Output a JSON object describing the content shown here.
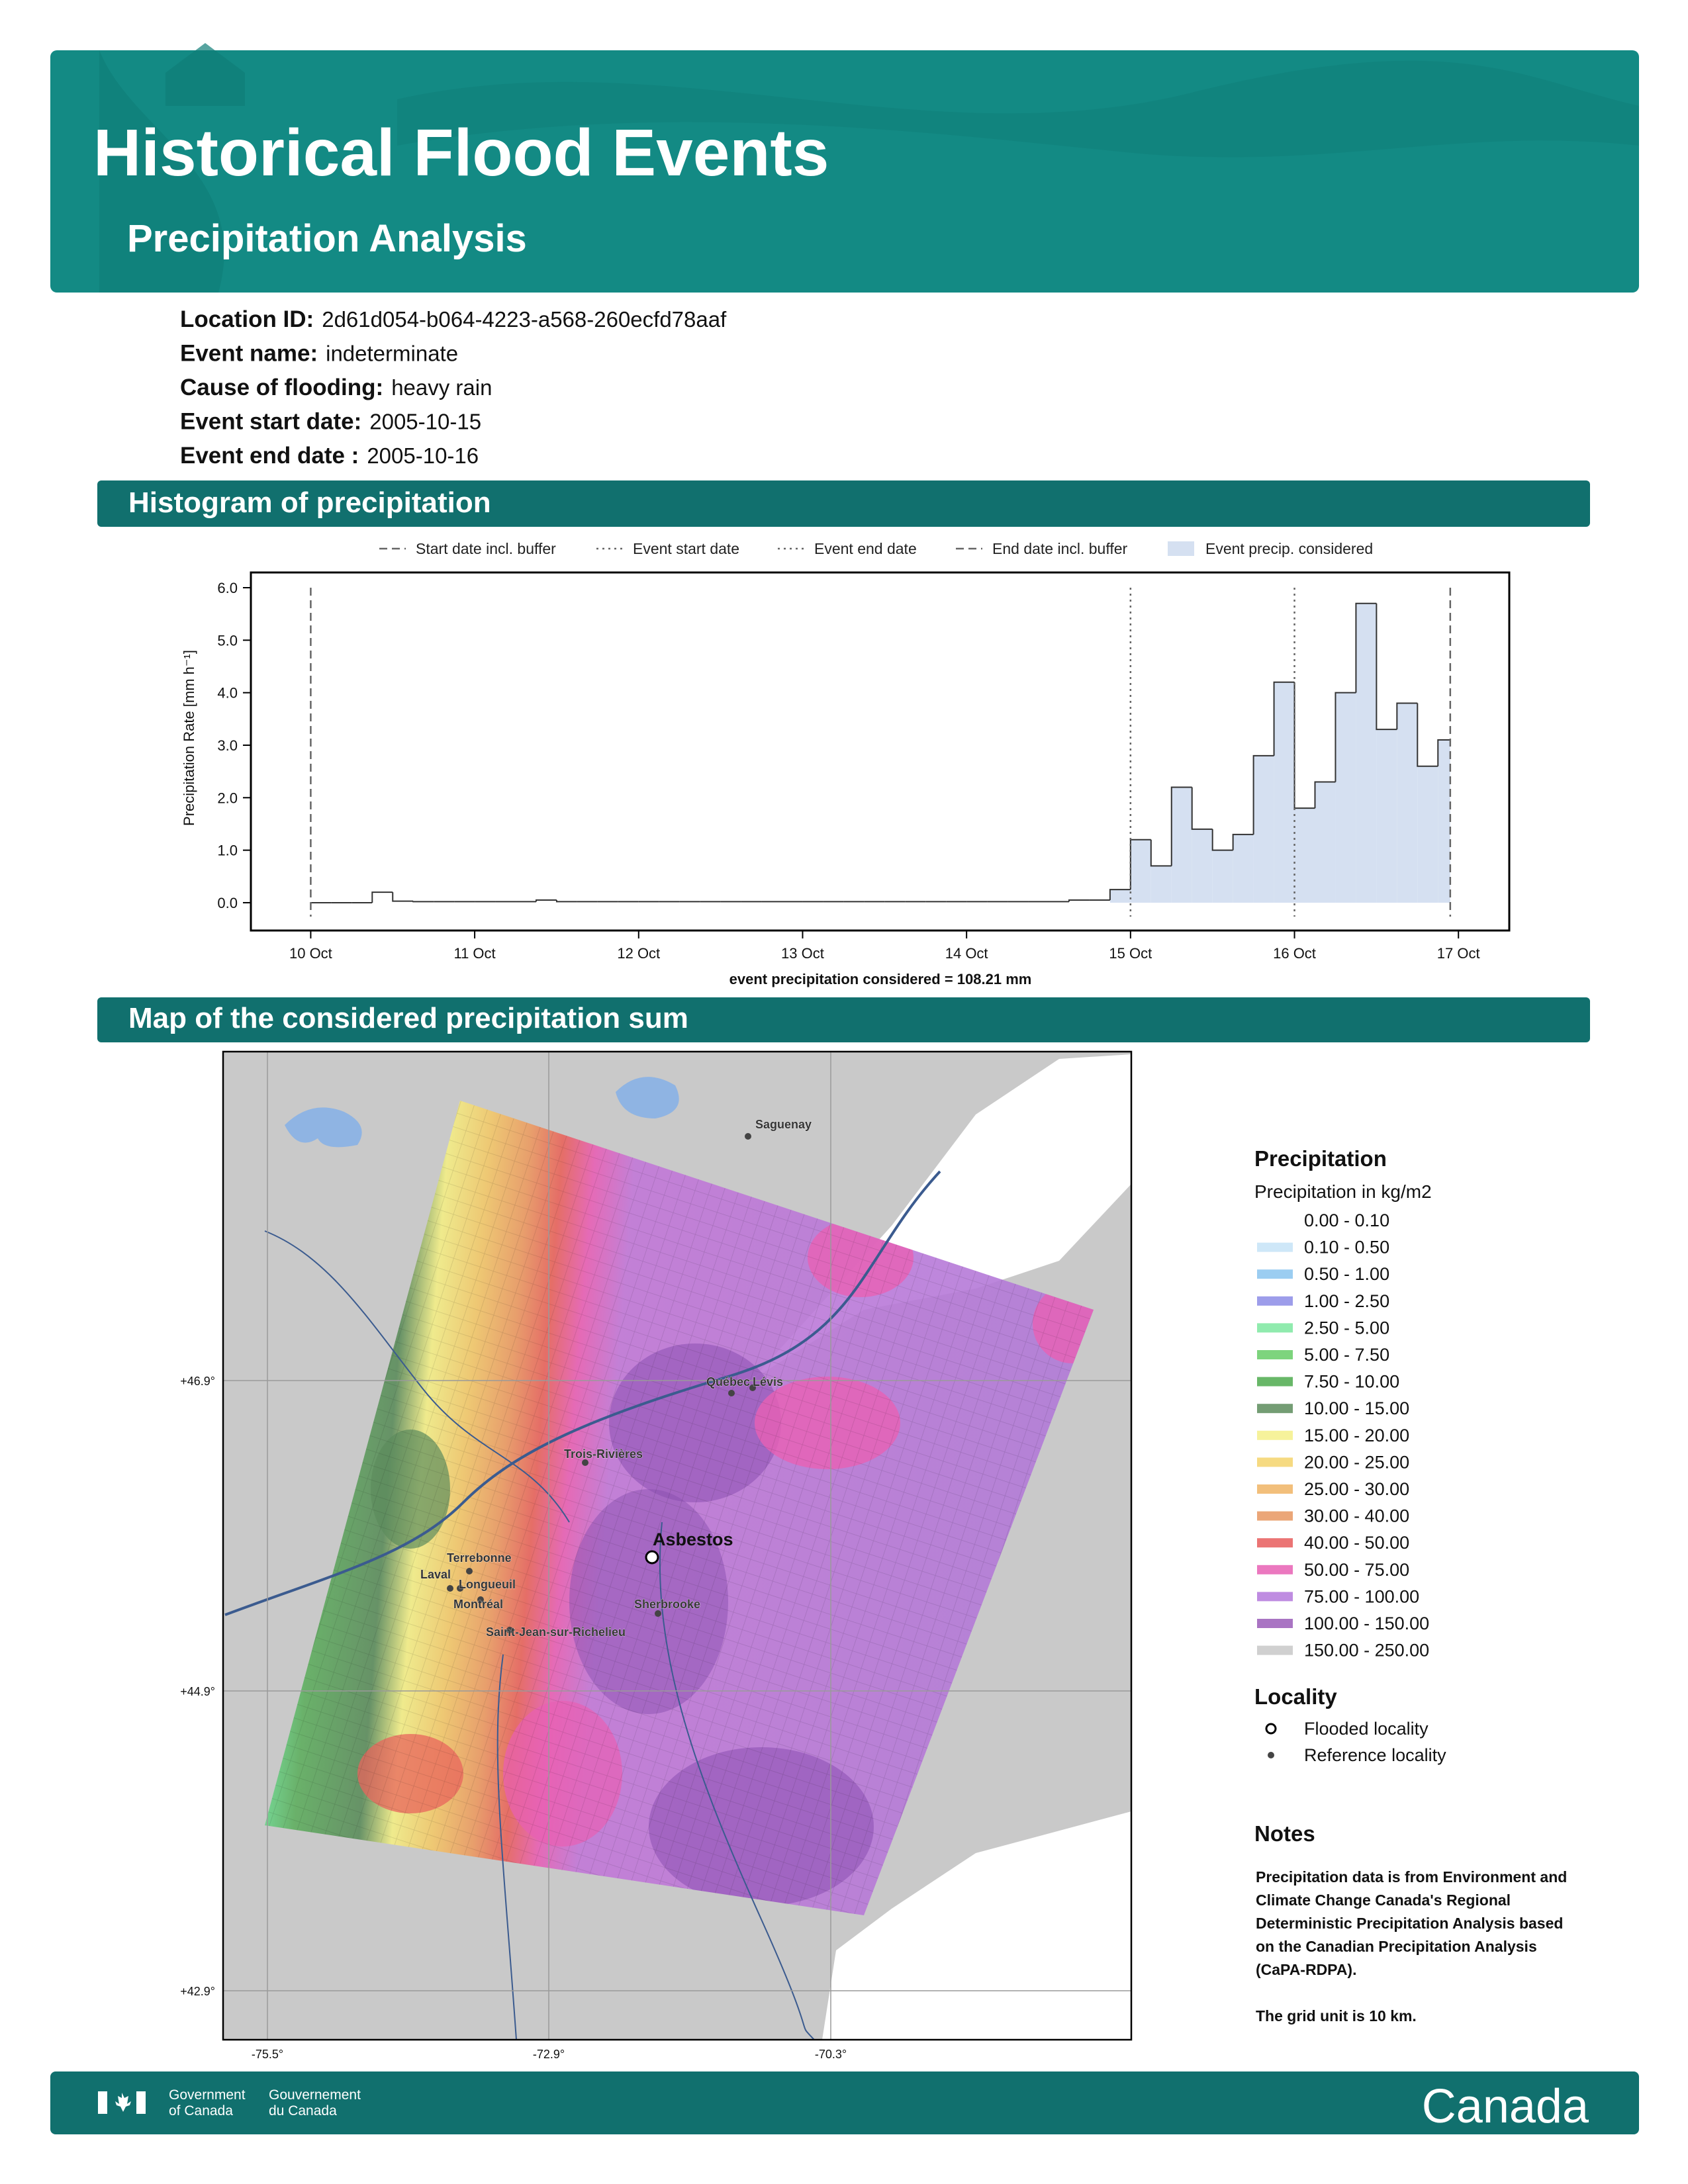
{
  "header": {
    "title": "Historical Flood Events",
    "subtitle": "Precipitation Analysis"
  },
  "event_info": [
    {
      "label": "Location ID:",
      "value": "2d61d054-b064-4223-a568-260ecfd78aaf"
    },
    {
      "label": "Event name:",
      "value": "indeterminate"
    },
    {
      "label": "Cause of flooding:",
      "value": "heavy rain"
    },
    {
      "label": "Event start date:",
      "value": "2005-10-15"
    },
    {
      "label": "Event end date :",
      "value": "2005-10-16"
    }
  ],
  "sections": [
    "Histogram of precipitation",
    "Map of the considered precipitation sum"
  ],
  "chart_data": {
    "type": "histogram",
    "y_label": "Precipitation Rate [mm h⁻¹]",
    "caption": "event precipitation considered = 108.21 mm",
    "bins": [
      0,
      0.125,
      0.25,
      0.375,
      0.5,
      0.625,
      0.75,
      0.875,
      1,
      1.125,
      1.25,
      1.375,
      1.5,
      1.625,
      1.75,
      1.875,
      2,
      2.125,
      2.25,
      2.375,
      2.5,
      2.625,
      2.75,
      2.875,
      3,
      3.125,
      3.25,
      3.375,
      3.5,
      3.625,
      3.75,
      3.875,
      4,
      4.125,
      4.25,
      4.375,
      4.5,
      4.625,
      4.75,
      4.875,
      5,
      5.125,
      5.25,
      5.375,
      5.5,
      5.625,
      5.75,
      5.875,
      6,
      6.125,
      6.25,
      6.375,
      6.5,
      6.625,
      6.75,
      6.875,
      6.95
    ],
    "values": [
      0,
      0,
      0,
      0.2,
      0.03,
      0.02,
      0.02,
      0.02,
      0.02,
      0.02,
      0.02,
      0.05,
      0.02,
      0.02,
      0.02,
      0.02,
      0.02,
      0.02,
      0.02,
      0.02,
      0.02,
      0.02,
      0.02,
      0.02,
      0.02,
      0.02,
      0.02,
      0.02,
      0.02,
      0.02,
      0.02,
      0.02,
      0.02,
      0.02,
      0.02,
      0.02,
      0.02,
      0.05,
      0.05,
      0.25,
      1.2,
      0.7,
      2.2,
      1.4,
      1.0,
      1.3,
      2.8,
      4.2,
      1.8,
      2.3,
      4.0,
      5.7,
      3.3,
      3.8,
      2.6,
      3.1
    ],
    "color": "#333333",
    "fill_color": "#d5e0f1",
    "fill_name": "Event precip. considered",
    "considered_range": [
      4.875,
      6.95
    ],
    "vlines": [
      {
        "name": "Start date incl. buffer",
        "x": 0,
        "style": "dashed"
      },
      {
        "name": "Event start date",
        "x": 5,
        "style": "dotted"
      },
      {
        "name": "Event end date",
        "x": 6,
        "style": "dotted"
      },
      {
        "name": "End date incl. buffer",
        "x": 6.95,
        "style": "dashed"
      }
    ],
    "xlim": [
      -0.365,
      7.31
    ],
    "ylim": [
      -0.53,
      6.29
    ],
    "xticks": [
      {
        "value": 0,
        "label": "10 Oct"
      },
      {
        "value": 1,
        "label": "11 Oct"
      },
      {
        "value": 2,
        "label": "12 Oct"
      },
      {
        "value": 3,
        "label": "13 Oct"
      },
      {
        "value": 4,
        "label": "14 Oct"
      },
      {
        "value": 5,
        "label": "15 Oct"
      },
      {
        "value": 6,
        "label": "16 Oct"
      },
      {
        "value": 7,
        "label": "17 Oct"
      }
    ],
    "yticks": [
      {
        "value": 0,
        "label": "0.0"
      },
      {
        "value": 1,
        "label": "1.0"
      },
      {
        "value": 2,
        "label": "2.0"
      },
      {
        "value": 3,
        "label": "3.0"
      },
      {
        "value": 4,
        "label": "4.0"
      },
      {
        "value": 5,
        "label": "5.0"
      },
      {
        "value": 6,
        "label": "6.0"
      }
    ]
  },
  "map": {
    "legend_title": "Precipitation",
    "legend_subtitle": "Precipitation in kg/m2",
    "classes": [
      {
        "label": "0.00 - 0.10",
        "color": "#ffffff"
      },
      {
        "label": "0.10 - 0.50",
        "color": "#c6e3f7"
      },
      {
        "label": "0.50 - 1.00",
        "color": "#8ac4ef"
      },
      {
        "label": "1.00 - 2.50",
        "color": "#8c8ce6"
      },
      {
        "label": "2.50 - 5.00",
        "color": "#7de8a0"
      },
      {
        "label": "5.00 - 7.50",
        "color": "#66cc66"
      },
      {
        "label": "7.50 - 10.00",
        "color": "#4daa4d"
      },
      {
        "label": "10.00 - 15.00",
        "color": "#5c8c5c"
      },
      {
        "label": "15.00 - 20.00",
        "color": "#f5f08a"
      },
      {
        "label": "20.00 - 25.00",
        "color": "#f5d36b"
      },
      {
        "label": "25.00 - 30.00",
        "color": "#f0b464"
      },
      {
        "label": "30.00 - 40.00",
        "color": "#e89660"
      },
      {
        "label": "40.00 - 50.00",
        "color": "#e85c5c"
      },
      {
        "label": "50.00 - 75.00",
        "color": "#e860b4"
      },
      {
        "label": "75.00 - 100.00",
        "color": "#b478dc"
      },
      {
        "label": "100.00 - 150.00",
        "color": "#9a5cb8"
      },
      {
        "label": "150.00 - 250.00",
        "color": "#c8c8c8"
      }
    ],
    "locality_title": "Locality",
    "locality_items": [
      {
        "label": "Flooded locality",
        "kind": "flooded"
      },
      {
        "label": "Reference locality",
        "kind": "reference"
      }
    ],
    "places": [
      {
        "label": "Saguenay",
        "kind": "reference"
      },
      {
        "label": "Québec",
        "kind": "reference"
      },
      {
        "label": "Lévis",
        "kind": "reference"
      },
      {
        "label": "Trois-Rivières",
        "kind": "reference"
      },
      {
        "label": "Asbestos",
        "kind": "flooded"
      },
      {
        "label": "Terrebonne",
        "kind": "reference"
      },
      {
        "label": "Laval",
        "kind": "reference"
      },
      {
        "label": "Longueuil",
        "kind": "reference"
      },
      {
        "label": "Montréal",
        "kind": "reference"
      },
      {
        "label": "Sherbrooke",
        "kind": "reference"
      },
      {
        "label": "Saint-Jean-sur-Richelieu",
        "kind": "reference"
      }
    ],
    "lat_labels": [
      "+46.9°",
      "+44.9°",
      "+42.9°"
    ],
    "lon_labels": [
      "-75.5°",
      "-72.9°",
      "-70.3°"
    ]
  },
  "notes": {
    "title": "Notes",
    "lines": [
      "Precipitation data is from Environment and",
      "Climate Change Canada's Regional",
      "Deterministic Precipitation Analysis based",
      "on the Canadian Precipitation Analysis",
      "(CaPA-RDPA)."
    ],
    "grid_note": "The grid unit is 10 km."
  },
  "footer": {
    "gov_en": [
      "Government",
      "of Canada"
    ],
    "gov_fr": [
      "Gouvernement",
      "du Canada"
    ],
    "wordmark": "Canada"
  }
}
